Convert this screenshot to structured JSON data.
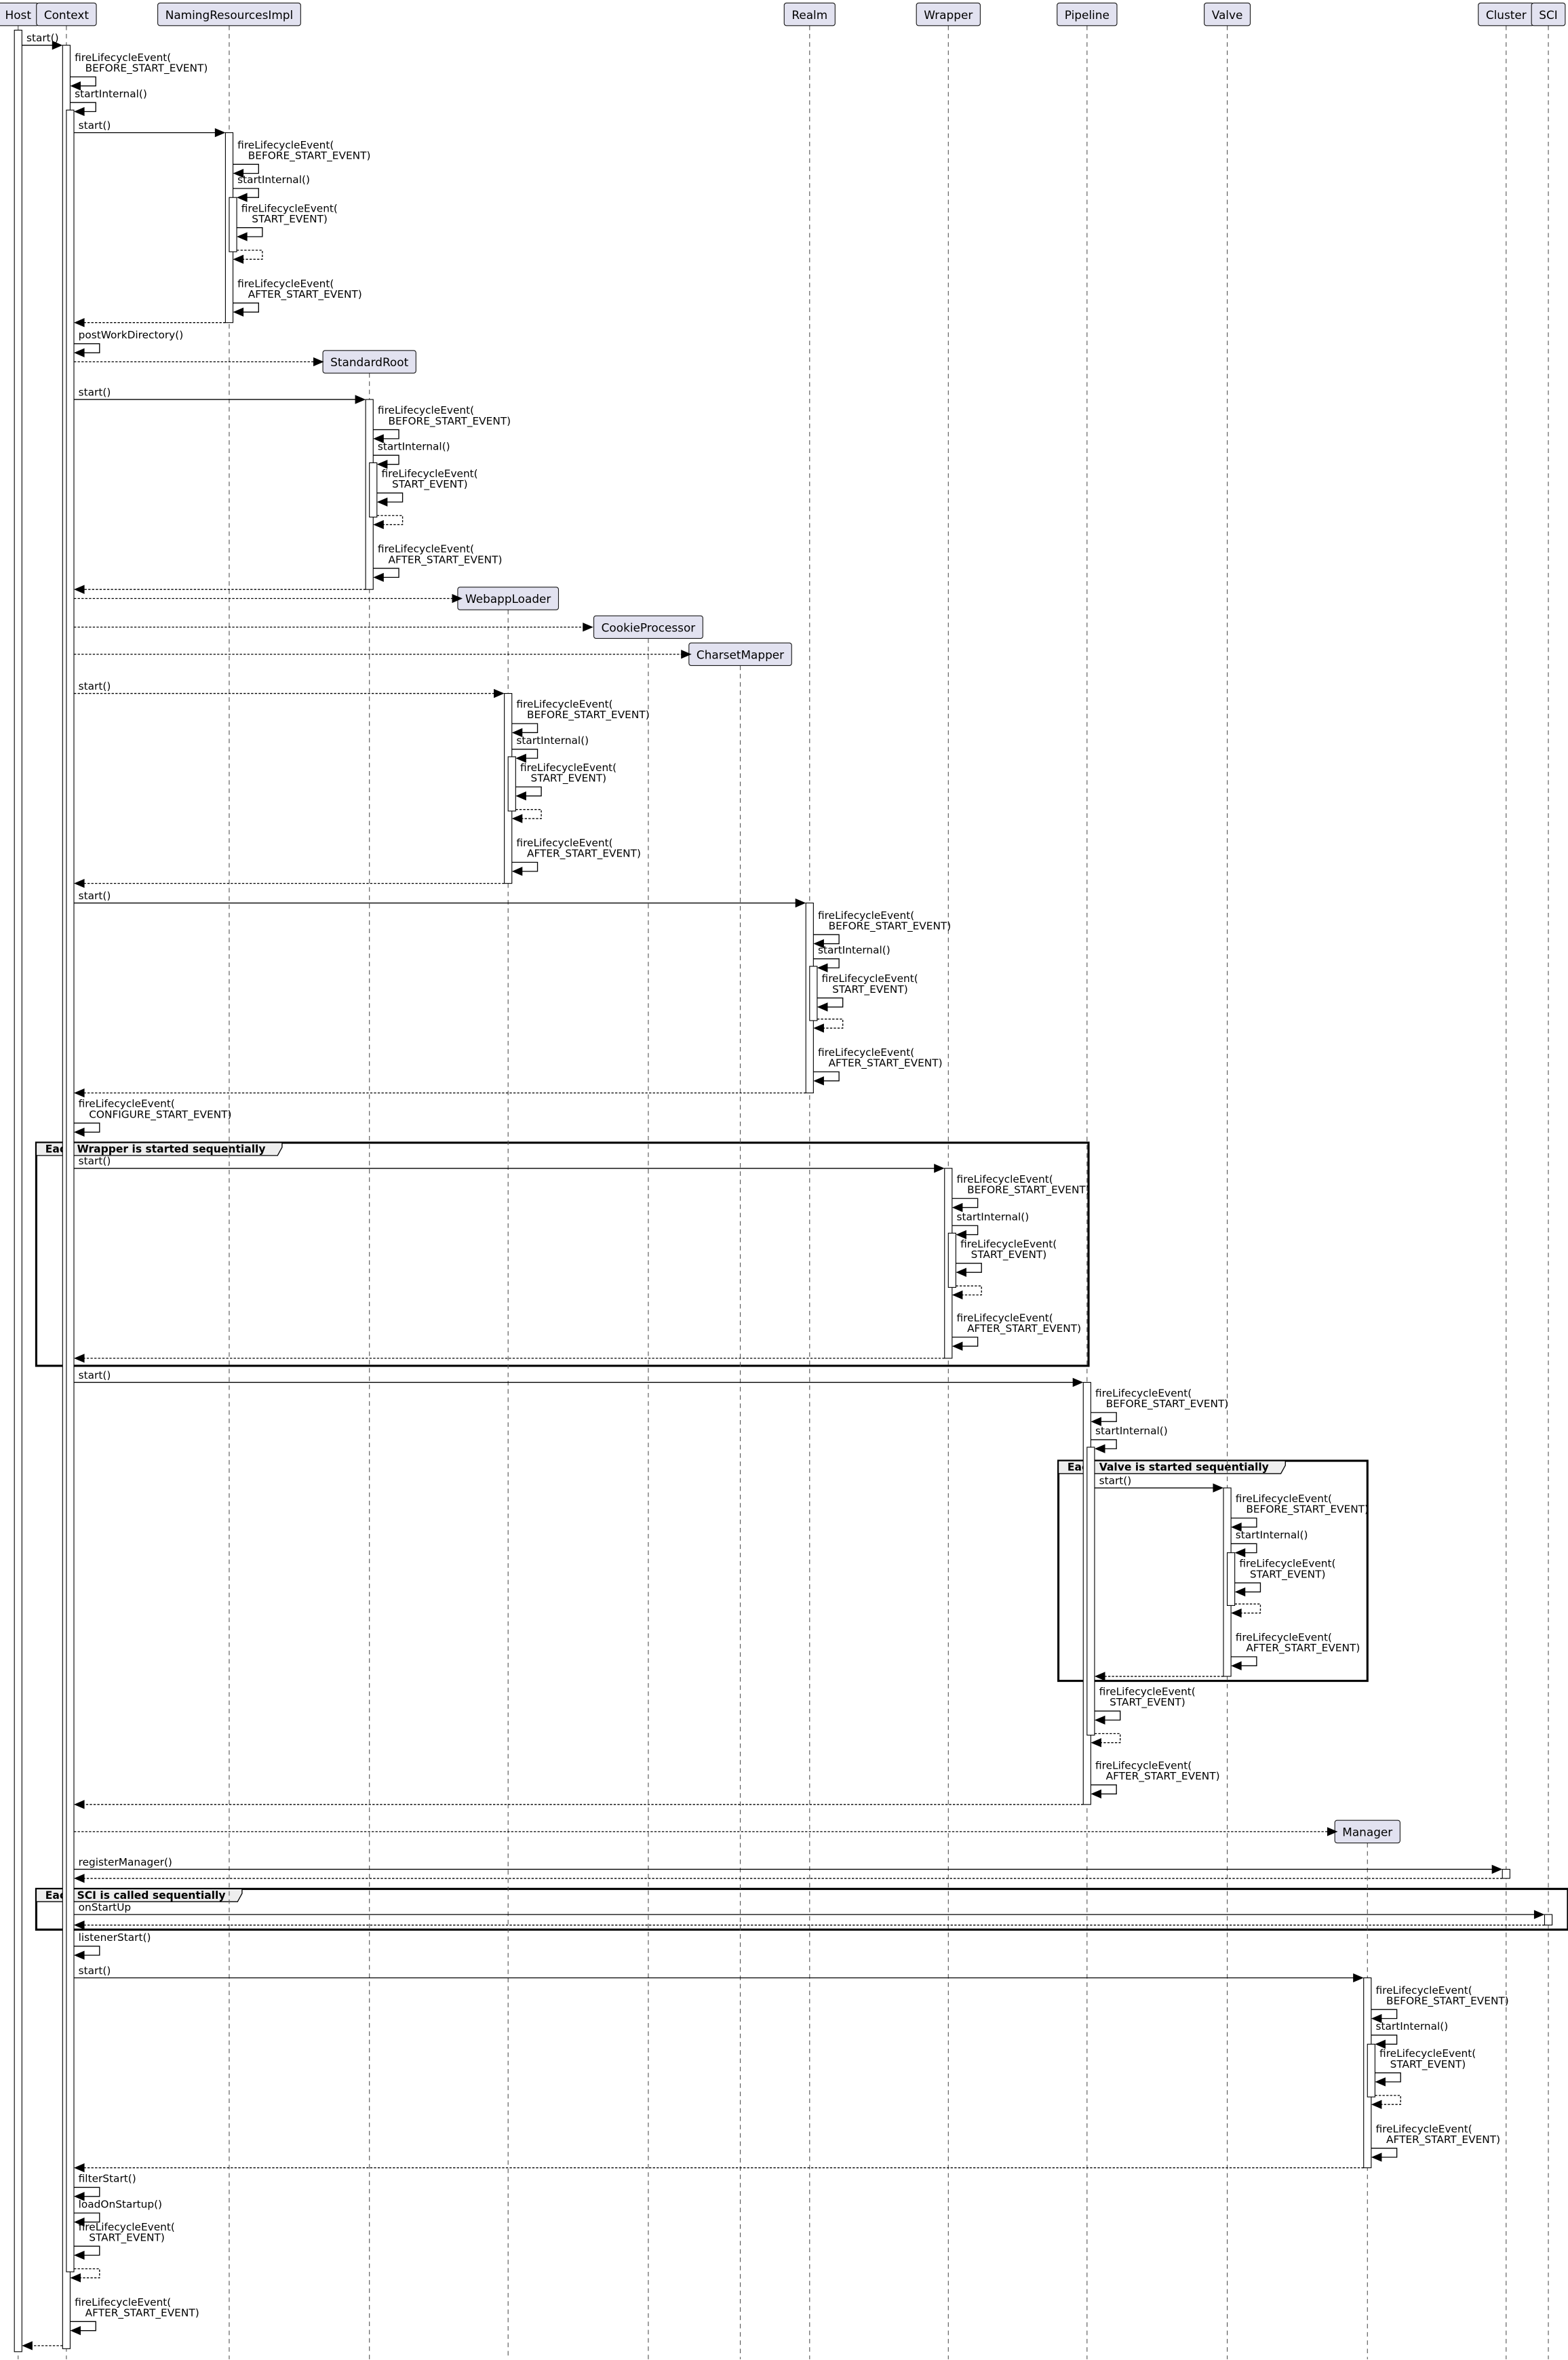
{
  "participants": {
    "host": "Host",
    "context": "Context",
    "naming": "NamingResourcesImpl",
    "sroot": "StandardRoot",
    "webapp": "WebappLoader",
    "cookie": "CookieProcessor",
    "charset": "CharsetMapper",
    "realm": "Realm",
    "wrapper": "Wrapper",
    "pipeline": "Pipeline",
    "valve": "Valve",
    "manager": "Manager",
    "cluster": "Cluster",
    "sci": "SCI"
  },
  "colors": {
    "participant_fill": "#e2e2f0",
    "participant_border": "#181818",
    "group_header": "#eeeeee"
  },
  "groups": [
    {
      "label": "Each Wrapper is started sequentially"
    },
    {
      "label": "Each Valve is started sequentially"
    },
    {
      "label": "Each SCI is called sequentially"
    }
  ],
  "messages": [
    {
      "f": "host",
      "t": "context",
      "kind": "sync",
      "label": [
        "start()"
      ]
    },
    {
      "f": "context",
      "t": "context",
      "kind": "self",
      "label": [
        "fireLifecycleEvent(",
        "BEFORE_START_EVENT)"
      ]
    },
    {
      "f": "context",
      "t": "context",
      "kind": "self",
      "label": [
        "startInternal()"
      ]
    },
    {
      "f": "context",
      "t": "naming",
      "kind": "sync",
      "label": [
        "start()"
      ]
    },
    {
      "f": "naming",
      "t": "naming",
      "kind": "self",
      "label": [
        "fireLifecycleEvent(",
        "BEFORE_START_EVENT)"
      ]
    },
    {
      "f": "naming",
      "t": "naming",
      "kind": "self",
      "label": [
        "startInternal()"
      ]
    },
    {
      "f": "naming",
      "t": "naming",
      "kind": "self",
      "label": [
        "fireLifecycleEvent(",
        "START_EVENT)"
      ]
    },
    {
      "f": "naming",
      "t": "naming",
      "kind": "selfret",
      "label": []
    },
    {
      "f": "naming",
      "t": "naming",
      "kind": "self",
      "label": [
        "fireLifecycleEvent(",
        "AFTER_START_EVENT)"
      ]
    },
    {
      "f": "naming",
      "t": "context",
      "kind": "ret",
      "label": []
    },
    {
      "f": "context",
      "t": "context",
      "kind": "self",
      "label": [
        "postWorkDirectory()"
      ]
    },
    {
      "f": "context",
      "t": "sroot",
      "kind": "create",
      "label": []
    },
    {
      "f": "context",
      "t": "sroot",
      "kind": "sync",
      "label": [
        "start()"
      ]
    },
    {
      "f": "sroot",
      "t": "sroot",
      "kind": "self",
      "label": [
        "fireLifecycleEvent(",
        "BEFORE_START_EVENT)"
      ]
    },
    {
      "f": "sroot",
      "t": "sroot",
      "kind": "self",
      "label": [
        "startInternal()"
      ]
    },
    {
      "f": "sroot",
      "t": "sroot",
      "kind": "self",
      "label": [
        "fireLifecycleEvent(",
        "START_EVENT)"
      ]
    },
    {
      "f": "sroot",
      "t": "sroot",
      "kind": "selfret",
      "label": []
    },
    {
      "f": "sroot",
      "t": "sroot",
      "kind": "self",
      "label": [
        "fireLifecycleEvent(",
        "AFTER_START_EVENT)"
      ]
    },
    {
      "f": "sroot",
      "t": "context",
      "kind": "ret",
      "label": []
    },
    {
      "f": "context",
      "t": "webapp",
      "kind": "create",
      "label": []
    },
    {
      "f": "context",
      "t": "cookie",
      "kind": "create",
      "label": []
    },
    {
      "f": "context",
      "t": "charset",
      "kind": "create",
      "label": []
    },
    {
      "f": "context",
      "t": "webapp",
      "kind": "dashed",
      "label": [
        "start()"
      ]
    },
    {
      "f": "webapp",
      "t": "webapp",
      "kind": "self",
      "label": [
        "fireLifecycleEvent(",
        "BEFORE_START_EVENT)"
      ]
    },
    {
      "f": "webapp",
      "t": "webapp",
      "kind": "self",
      "label": [
        "startInternal()"
      ]
    },
    {
      "f": "webapp",
      "t": "webapp",
      "kind": "self",
      "label": [
        "fireLifecycleEvent(",
        "START_EVENT)"
      ]
    },
    {
      "f": "webapp",
      "t": "webapp",
      "kind": "selfret",
      "label": []
    },
    {
      "f": "webapp",
      "t": "webapp",
      "kind": "self",
      "label": [
        "fireLifecycleEvent(",
        "AFTER_START_EVENT)"
      ]
    },
    {
      "f": "webapp",
      "t": "context",
      "kind": "ret",
      "label": []
    },
    {
      "f": "context",
      "t": "realm",
      "kind": "sync",
      "label": [
        "start()"
      ]
    },
    {
      "f": "realm",
      "t": "realm",
      "kind": "self",
      "label": [
        "fireLifecycleEvent(",
        "BEFORE_START_EVENT)"
      ]
    },
    {
      "f": "realm",
      "t": "realm",
      "kind": "self",
      "label": [
        "startInternal()"
      ]
    },
    {
      "f": "realm",
      "t": "realm",
      "kind": "self",
      "label": [
        "fireLifecycleEvent(",
        "START_EVENT)"
      ]
    },
    {
      "f": "realm",
      "t": "realm",
      "kind": "selfret",
      "label": []
    },
    {
      "f": "realm",
      "t": "realm",
      "kind": "self",
      "label": [
        "fireLifecycleEvent(",
        "AFTER_START_EVENT)"
      ]
    },
    {
      "f": "realm",
      "t": "context",
      "kind": "ret",
      "label": []
    },
    {
      "f": "context",
      "t": "context",
      "kind": "self",
      "label": [
        "fireLifecycleEvent(",
        "CONFIGURE_START_EVENT)"
      ]
    },
    {
      "f": "context",
      "t": "wrapper",
      "kind": "sync",
      "label": [
        "start()"
      ]
    },
    {
      "f": "wrapper",
      "t": "wrapper",
      "kind": "self",
      "label": [
        "fireLifecycleEvent(",
        "BEFORE_START_EVENT)"
      ]
    },
    {
      "f": "wrapper",
      "t": "wrapper",
      "kind": "self",
      "label": [
        "startInternal()"
      ]
    },
    {
      "f": "wrapper",
      "t": "wrapper",
      "kind": "self",
      "label": [
        "fireLifecycleEvent(",
        "START_EVENT)"
      ]
    },
    {
      "f": "wrapper",
      "t": "wrapper",
      "kind": "selfret",
      "label": []
    },
    {
      "f": "wrapper",
      "t": "wrapper",
      "kind": "self",
      "label": [
        "fireLifecycleEvent(",
        "AFTER_START_EVENT)"
      ]
    },
    {
      "f": "wrapper",
      "t": "context",
      "kind": "ret",
      "label": []
    },
    {
      "f": "context",
      "t": "pipeline",
      "kind": "sync",
      "label": [
        "start()"
      ]
    },
    {
      "f": "pipeline",
      "t": "pipeline",
      "kind": "self",
      "label": [
        "fireLifecycleEvent(",
        "BEFORE_START_EVENT)"
      ]
    },
    {
      "f": "pipeline",
      "t": "pipeline",
      "kind": "self",
      "label": [
        "startInternal()"
      ]
    },
    {
      "f": "pipeline",
      "t": "valve",
      "kind": "sync",
      "label": [
        "start()"
      ]
    },
    {
      "f": "valve",
      "t": "valve",
      "kind": "self",
      "label": [
        "fireLifecycleEvent(",
        "BEFORE_START_EVENT)"
      ]
    },
    {
      "f": "valve",
      "t": "valve",
      "kind": "self",
      "label": [
        "startInternal()"
      ]
    },
    {
      "f": "valve",
      "t": "valve",
      "kind": "self",
      "label": [
        "fireLifecycleEvent(",
        "START_EVENT)"
      ]
    },
    {
      "f": "valve",
      "t": "valve",
      "kind": "selfret",
      "label": []
    },
    {
      "f": "valve",
      "t": "valve",
      "kind": "self",
      "label": [
        "fireLifecycleEvent(",
        "AFTER_START_EVENT)"
      ]
    },
    {
      "f": "valve",
      "t": "pipeline",
      "kind": "ret",
      "label": []
    },
    {
      "f": "pipeline",
      "t": "pipeline",
      "kind": "self",
      "label": [
        "fireLifecycleEvent(",
        "START_EVENT)"
      ]
    },
    {
      "f": "pipeline",
      "t": "pipeline",
      "kind": "selfret",
      "label": []
    },
    {
      "f": "pipeline",
      "t": "pipeline",
      "kind": "self",
      "label": [
        "fireLifecycleEvent(",
        "AFTER_START_EVENT)"
      ]
    },
    {
      "f": "pipeline",
      "t": "context",
      "kind": "ret",
      "label": []
    },
    {
      "f": "context",
      "t": "manager",
      "kind": "create",
      "label": []
    },
    {
      "f": "context",
      "t": "cluster",
      "kind": "sync",
      "label": [
        "registerManager()"
      ]
    },
    {
      "f": "cluster",
      "t": "context",
      "kind": "ret",
      "label": []
    },
    {
      "f": "context",
      "t": "sci",
      "kind": "sync",
      "label": [
        "onStartUp"
      ]
    },
    {
      "f": "sci",
      "t": "context",
      "kind": "ret",
      "label": []
    },
    {
      "f": "context",
      "t": "context",
      "kind": "self",
      "label": [
        "listenerStart()"
      ]
    },
    {
      "f": "context",
      "t": "manager",
      "kind": "sync",
      "label": [
        "start()"
      ]
    },
    {
      "f": "manager",
      "t": "manager",
      "kind": "self",
      "label": [
        "fireLifecycleEvent(",
        "BEFORE_START_EVENT)"
      ]
    },
    {
      "f": "manager",
      "t": "manager",
      "kind": "self",
      "label": [
        "startInternal()"
      ]
    },
    {
      "f": "manager",
      "t": "manager",
      "kind": "self",
      "label": [
        "fireLifecycleEvent(",
        "START_EVENT)"
      ]
    },
    {
      "f": "manager",
      "t": "manager",
      "kind": "selfret",
      "label": []
    },
    {
      "f": "manager",
      "t": "manager",
      "kind": "self",
      "label": [
        "fireLifecycleEvent(",
        "AFTER_START_EVENT)"
      ]
    },
    {
      "f": "manager",
      "t": "context",
      "kind": "ret",
      "label": []
    },
    {
      "f": "context",
      "t": "context",
      "kind": "self",
      "label": [
        "filterStart()"
      ]
    },
    {
      "f": "context",
      "t": "context",
      "kind": "self",
      "label": [
        "loadOnStartup()"
      ]
    },
    {
      "f": "context",
      "t": "context",
      "kind": "self",
      "label": [
        "fireLifecycleEvent(",
        "START_EVENT)"
      ]
    },
    {
      "f": "context",
      "t": "context",
      "kind": "selfret",
      "label": []
    },
    {
      "f": "context",
      "t": "context",
      "kind": "self",
      "label": [
        "fireLifecycleEvent(",
        "AFTER_START_EVENT)"
      ]
    },
    {
      "f": "context",
      "t": "host",
      "kind": "ret",
      "label": []
    }
  ]
}
